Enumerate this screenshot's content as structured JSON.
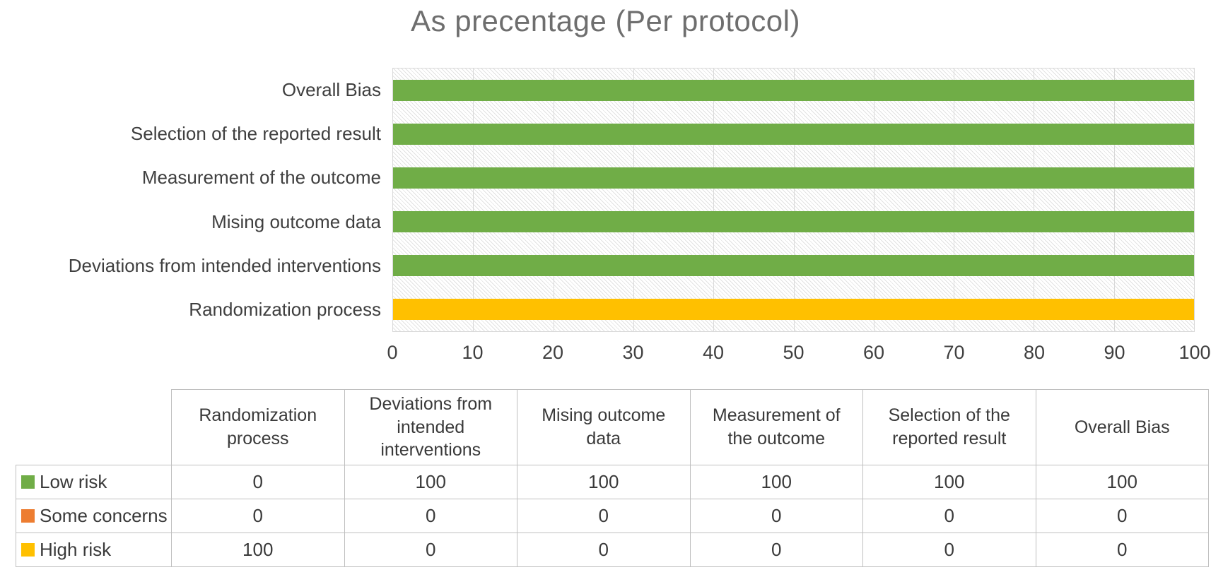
{
  "chart_data": {
    "type": "bar",
    "orientation": "horizontal-stacked",
    "title": "As precentage (Per protocol)",
    "categories": [
      "Randomization process",
      "Deviations from intended interventions",
      "Mising outcome data",
      "Measurement of the outcome",
      "Selection of the reported result",
      "Overall Bias"
    ],
    "series": [
      {
        "name": "Low risk",
        "color": "#70AD47",
        "values": [
          0,
          100,
          100,
          100,
          100,
          100
        ]
      },
      {
        "name": "Some concerns",
        "color": "#ED7D31",
        "values": [
          0,
          0,
          0,
          0,
          0,
          0
        ]
      },
      {
        "name": "High risk",
        "color": "#FFC000",
        "values": [
          100,
          0,
          0,
          0,
          0,
          0
        ]
      }
    ],
    "x_ticks": [
      0,
      10,
      20,
      30,
      40,
      50,
      60,
      70,
      80,
      90,
      100
    ],
    "xlim": [
      0,
      100
    ],
    "grid": "vertical-major",
    "plot_background": "diagonal-hatch",
    "legend_position": "table-rows-left",
    "category_axis_order_top_to_bottom": [
      "Overall Bias",
      "Selection of the reported result",
      "Measurement of the outcome",
      "Mising outcome data",
      "Deviations from intended interventions",
      "Randomization process"
    ]
  },
  "colors": {
    "title_text": "#6E6E6E",
    "axis_text": "#3F3F3F",
    "gridline": "#D9D9D9",
    "plot_border": "#D9D9D9",
    "table_border": "#BFBFBF"
  }
}
